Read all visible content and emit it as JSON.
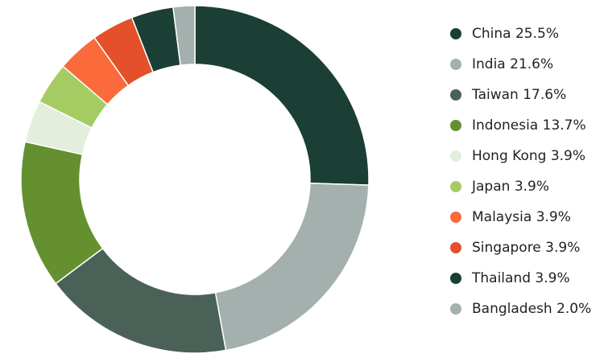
{
  "chart_data": {
    "type": "donut",
    "categories": [
      "China",
      "India",
      "Taiwan",
      "Indonesia",
      "Hong Kong",
      "Japan",
      "Malaysia",
      "Singapore",
      "Thailand",
      "Bangladesh"
    ],
    "values": [
      25.5,
      21.6,
      17.6,
      13.7,
      3.9,
      3.9,
      3.9,
      3.9,
      3.9,
      2.0
    ],
    "value_labels": [
      "25.5%",
      "21.6%",
      "17.6%",
      "13.7%",
      "3.9%",
      "3.9%",
      "3.9%",
      "3.9%",
      "3.9%",
      "2.0%"
    ],
    "colors": [
      "#1b3f35",
      "#a3b0ad",
      "#4a6158",
      "#64902f",
      "#e3eedb",
      "#a5cc63",
      "#fb6a3a",
      "#e3502a",
      "#1b3f35",
      "#a3b0ad"
    ],
    "legend": "right"
  }
}
